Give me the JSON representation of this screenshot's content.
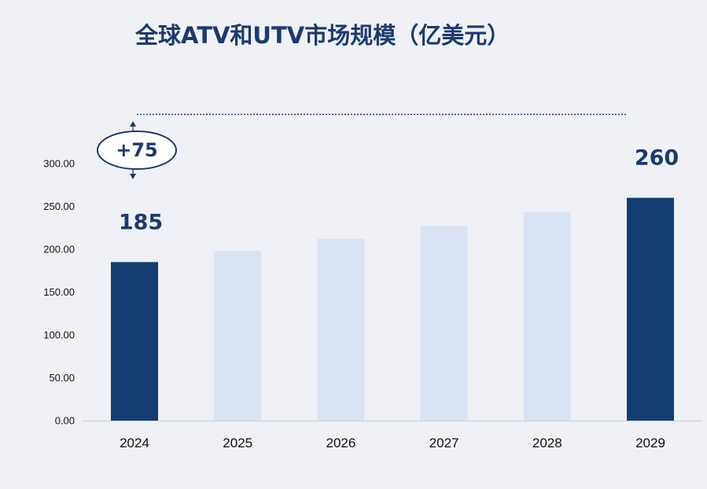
{
  "chart_data": {
    "type": "bar",
    "title": "全球ATV和UTV市场规模（亿美元）",
    "categories": [
      "2024",
      "2025",
      "2026",
      "2027",
      "2028",
      "2029"
    ],
    "values": [
      185,
      198,
      212,
      227,
      243,
      260
    ],
    "highlight": [
      true,
      false,
      false,
      false,
      false,
      true
    ],
    "data_labels": [
      "185",
      "",
      "",
      "",
      "",
      "260"
    ],
    "ylim": [
      0,
      300
    ],
    "yticks": [
      0,
      50,
      100,
      150,
      200,
      250,
      300
    ],
    "ytick_labels": [
      "0.00",
      "50.00",
      "100.00",
      "150.00",
      "200.00",
      "250.00",
      "300.00"
    ],
    "xlabel": "",
    "ylabel": "",
    "grid": false,
    "annotation": "+75",
    "colors": {
      "highlight": "#143d72",
      "normal": "#dae3f3"
    }
  }
}
